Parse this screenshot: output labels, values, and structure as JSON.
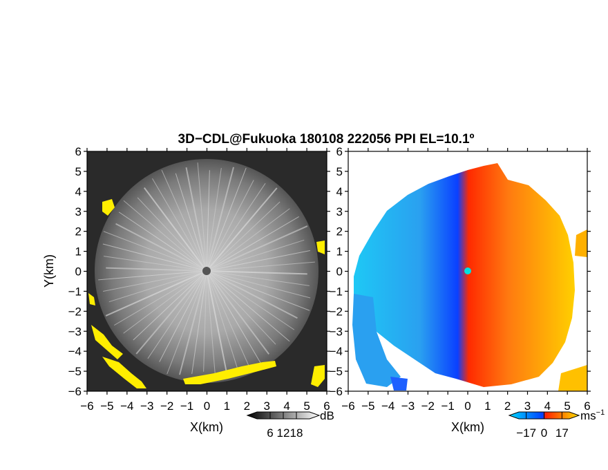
{
  "title": "3D−CDL@Fukuoka 180108 222056 PPI EL=10.1º",
  "chart_data": [
    {
      "type": "heatmap",
      "panel": "left",
      "description_quantity": "reflectivity",
      "xlabel": "X(km)",
      "ylabel": "Y(km)",
      "xlim": [
        -6,
        6
      ],
      "ylim": [
        -6,
        6
      ],
      "ticks": [
        -6,
        -5,
        -4,
        -3,
        -2,
        -1,
        0,
        1,
        2,
        3,
        4,
        5,
        6
      ],
      "tick_labels": [
        "−6",
        "−5",
        "−4",
        "−3",
        "−2",
        "−1",
        "0",
        "1",
        "2",
        "3",
        "4",
        "5",
        "6"
      ],
      "colorbar": {
        "unit": "dB",
        "tick_values": [
          6,
          12,
          18
        ],
        "tick_labels": [
          "6",
          "12",
          "18"
        ],
        "colors": [
          "#000000",
          "#ffffff"
        ]
      },
      "background_color": "#2a2a2a",
      "clutter_color": "#ffee00",
      "scan_radius_km": 5.6
    },
    {
      "type": "heatmap",
      "panel": "right",
      "description_quantity": "doppler velocity",
      "xlabel": "X(km)",
      "xlim": [
        -6,
        6
      ],
      "ylim": [
        -6,
        6
      ],
      "ticks": [
        -6,
        -5,
        -4,
        -3,
        -2,
        -1,
        0,
        1,
        2,
        3,
        4,
        5,
        6
      ],
      "tick_labels": [
        "−6",
        "−5",
        "−4",
        "−3",
        "−2",
        "−1",
        "0",
        "1",
        "2",
        "3",
        "4",
        "5",
        "6"
      ],
      "colorbar": {
        "unit": "ms",
        "unit_exponent": "−1",
        "tick_values": [
          -17,
          0,
          17
        ],
        "tick_labels": [
          "−17",
          "0",
          "17"
        ],
        "colors": [
          "#00c8ff",
          "#0050ff",
          "#ff2000",
          "#ffe000"
        ]
      },
      "scan_radius_km": 5.6
    }
  ]
}
